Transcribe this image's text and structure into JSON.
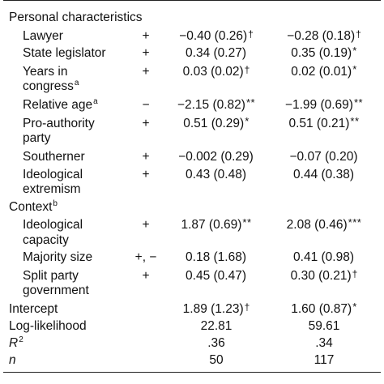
{
  "sections": {
    "personal": {
      "title": "Personal characteristics"
    },
    "context": {
      "title": "Context",
      "sup": "b"
    }
  },
  "rows": [
    {
      "label": "Lawyer",
      "sign": "+",
      "c1": "−0.40 (0.26)",
      "c1sig": "†",
      "c2": "−0.28 (0.18)",
      "c2sig": "†"
    },
    {
      "label": "State legislator",
      "sign": "+",
      "c1": "0.34 (0.27)",
      "c1sig": "",
      "c2": "0.35 (0.19)",
      "c2sig": "*"
    },
    {
      "label": "Years in",
      "label2": "congress",
      "label2sup": "a",
      "sign": "+",
      "c1": "0.03 (0.02)",
      "c1sig": "†",
      "c2": "0.02 (0.01)",
      "c2sig": "*"
    },
    {
      "label": "Relative age",
      "labelsup": "a",
      "sign": "−",
      "c1": "−2.15 (0.82)",
      "c1sig": "**",
      "c2": "−1.99 (0.69)",
      "c2sig": "**"
    },
    {
      "label": "Pro-authority",
      "label2": "party",
      "sign": "+",
      "c1": "0.51 (0.29)",
      "c1sig": "*",
      "c2": "0.51 (0.21)",
      "c2sig": "**"
    },
    {
      "label": "Southerner",
      "sign": "+",
      "c1": "−0.002 (0.29)",
      "c1sig": "",
      "c2": "−0.07 (0.20)",
      "c2sig": ""
    },
    {
      "label": "Ideological",
      "label2": "extremism",
      "sign": "+",
      "c1": "0.43 (0.48)",
      "c1sig": "",
      "c2": "0.44 (0.38)",
      "c2sig": ""
    },
    {
      "label": "Ideological",
      "label2": "capacity",
      "sign": "+",
      "c1": "1.87 (0.69)",
      "c1sig": "**",
      "c2": "2.08 (0.46)",
      "c2sig": "***"
    },
    {
      "label": "Majority size",
      "sign": "+, −",
      "c1": "0.18 (1.68)",
      "c1sig": "",
      "c2": "0.41 (0.98)",
      "c2sig": ""
    },
    {
      "label": "Split party",
      "label2": "government",
      "sign": "+",
      "c1": "0.45 (0.47)",
      "c1sig": "",
      "c2": "0.30 (0.21)",
      "c2sig": "†"
    }
  ],
  "footer": [
    {
      "label": "Intercept",
      "c1": "1.89 (1.23)",
      "c1sig": "†",
      "c2": "1.60 (0.87)",
      "c2sig": "*"
    },
    {
      "label": "Log-likelihood",
      "c1": "22.81",
      "c1sig": "",
      "c2": "59.61",
      "c2sig": ""
    },
    {
      "label": "R",
      "labelsup": "2",
      "c1": ".36",
      "c1sig": "",
      "c2": ".34",
      "c2sig": ""
    },
    {
      "label": "n",
      "c1": "50",
      "c1sig": "",
      "c2": "117",
      "c2sig": ""
    }
  ]
}
